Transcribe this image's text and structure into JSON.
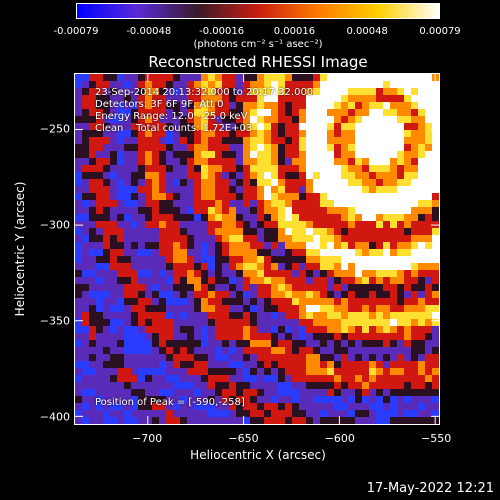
{
  "colorbar": {
    "tick_labels": [
      "-0.00079",
      "-0.00048",
      "-0.00016",
      "0.00016",
      "0.00048",
      "0.00079"
    ],
    "units_label": "(photons cm⁻² s⁻¹ asec⁻²)",
    "colors": [
      "#0000ff",
      "#5a2ad8",
      "#3a1a2a",
      "#c81e10",
      "#ff7a00",
      "#ffd000",
      "#ffffff"
    ]
  },
  "title": "Reconstructed RHESSI Image",
  "annotations": {
    "time_range": "23-Sep-2014 20:13:32.000 to 20:17:32.000",
    "detectors": "Detectors: 3F 6F 9F, Att 0",
    "energy_range": "Energy Range: 12.0 - 25.0 keV",
    "clean_counts": "Clean    Total counts: 1.72E+03",
    "peak_position": "Position of Peak = [-590,-258]"
  },
  "axes": {
    "xlabel": "Heliocentric X (arcsec)",
    "ylabel": "Heliocentric Y (arcsec)",
    "xlim": [
      -738,
      -548
    ],
    "ylim": [
      -404,
      -221
    ],
    "x_ticks": [
      -700,
      -650,
      -600,
      -550
    ],
    "x_tick_labels": [
      "−700",
      "−650",
      "−600",
      "−550"
    ],
    "y_ticks": [
      -250,
      -300,
      -350,
      -400
    ],
    "y_tick_labels": [
      "−250",
      "−300",
      "−350",
      "−400"
    ]
  },
  "image_palette": {
    "blue": "#2a3cff",
    "purple": "#5a2ab8",
    "dark": "#2a1020",
    "red": "#d01810",
    "orange": "#ff8a00",
    "yellow": "#ffe030",
    "white": "#ffffff"
  },
  "timestamp": "17-May-2022 12:21"
}
